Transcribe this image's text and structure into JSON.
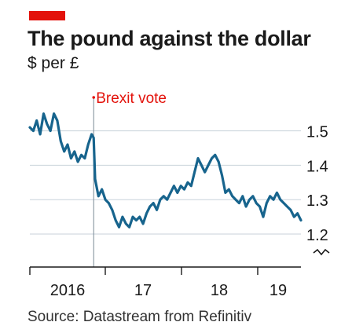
{
  "header": {
    "title": "The pound against the dollar",
    "subtitle": "$ per £"
  },
  "source": "Source: Datastream from Refinitiv",
  "colors": {
    "accent": "#e3120b",
    "line": "#17648d",
    "grid": "#c8d2da",
    "axis": "#1a1a1a",
    "annotation": "#e3120b"
  },
  "chart_data": {
    "type": "line",
    "title": "The pound against the dollar",
    "subtitle": "$ per £",
    "xlabel": "",
    "ylabel": "$ per £",
    "x_ticks": [
      "2016",
      "17",
      "18",
      "19"
    ],
    "y_ticks": [
      1.2,
      1.3,
      1.4,
      1.5
    ],
    "ylim": [
      1.15,
      1.55
    ],
    "y_axis_break": true,
    "grid": true,
    "y_axis_side": "right",
    "annotation": {
      "label": "Brexit vote",
      "x": 2016.48
    },
    "series": [
      {
        "x": [
          2015.55,
          2015.6,
          2015.65,
          2015.7,
          2015.75,
          2015.8,
          2015.85,
          2015.9,
          2015.95,
          2016.0,
          2016.05,
          2016.1,
          2016.15,
          2016.2,
          2016.25,
          2016.3,
          2016.35,
          2016.4,
          2016.45,
          2016.48,
          2016.5,
          2016.55,
          2016.6,
          2016.65,
          2016.7,
          2016.75,
          2016.8,
          2016.85,
          2016.9,
          2016.95,
          2017.0,
          2017.05,
          2017.1,
          2017.15,
          2017.2,
          2017.25,
          2017.3,
          2017.35,
          2017.4,
          2017.45,
          2017.5,
          2017.55,
          2017.6,
          2017.65,
          2017.7,
          2017.75,
          2017.8,
          2017.85,
          2017.9,
          2017.95,
          2018.0,
          2018.05,
          2018.1,
          2018.15,
          2018.2,
          2018.25,
          2018.3,
          2018.35,
          2018.4,
          2018.45,
          2018.5,
          2018.55,
          2018.6,
          2018.65,
          2018.7,
          2018.75,
          2018.8,
          2018.85,
          2018.9,
          2018.95,
          2019.0,
          2019.05,
          2019.1,
          2019.15,
          2019.2,
          2019.25,
          2019.3,
          2019.35,
          2019.4,
          2019.45,
          2019.5
        ],
        "values": [
          1.51,
          1.5,
          1.53,
          1.49,
          1.55,
          1.52,
          1.5,
          1.55,
          1.53,
          1.47,
          1.44,
          1.46,
          1.42,
          1.44,
          1.41,
          1.43,
          1.42,
          1.46,
          1.49,
          1.48,
          1.36,
          1.31,
          1.33,
          1.3,
          1.29,
          1.27,
          1.24,
          1.22,
          1.25,
          1.23,
          1.22,
          1.25,
          1.24,
          1.25,
          1.23,
          1.26,
          1.28,
          1.29,
          1.27,
          1.3,
          1.31,
          1.3,
          1.32,
          1.34,
          1.32,
          1.34,
          1.33,
          1.35,
          1.34,
          1.38,
          1.42,
          1.4,
          1.38,
          1.4,
          1.42,
          1.43,
          1.41,
          1.37,
          1.32,
          1.33,
          1.31,
          1.3,
          1.29,
          1.31,
          1.28,
          1.3,
          1.31,
          1.29,
          1.28,
          1.25,
          1.29,
          1.31,
          1.3,
          1.32,
          1.3,
          1.29,
          1.28,
          1.27,
          1.25,
          1.26,
          1.24
        ]
      }
    ]
  }
}
